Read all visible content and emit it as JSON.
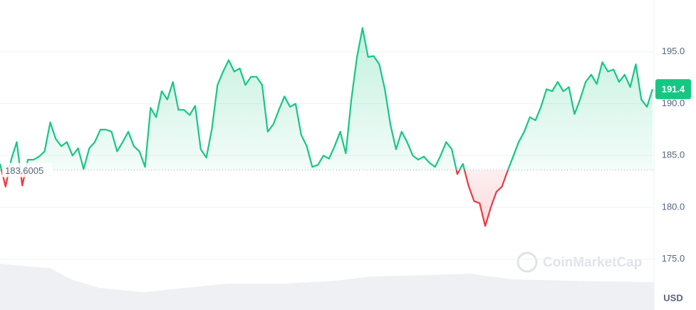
{
  "chart_data": {
    "type": "line",
    "values": [
      184.2,
      182.0,
      184.6,
      186.3,
      182.1,
      184.6,
      184.6,
      184.9,
      185.4,
      188.2,
      186.6,
      185.9,
      186.3,
      185.0,
      185.7,
      183.7,
      185.7,
      186.3,
      187.5,
      187.5,
      187.3,
      185.4,
      186.3,
      187.3,
      185.9,
      185.4,
      183.9,
      189.6,
      188.7,
      191.2,
      190.4,
      192.1,
      189.4,
      189.4,
      188.9,
      189.8,
      185.6,
      184.8,
      187.6,
      191.8,
      193.1,
      194.2,
      193.1,
      193.4,
      191.8,
      192.6,
      192.6,
      191.8,
      187.3,
      188.0,
      189.4,
      190.7,
      189.7,
      190.0,
      187.0,
      185.9,
      183.9,
      184.1,
      185.0,
      184.7,
      185.9,
      187.3,
      185.2,
      190.4,
      194.5,
      197.3,
      194.5,
      194.6,
      193.8,
      191.4,
      188.0,
      185.6,
      187.3,
      186.3,
      185.0,
      184.6,
      184.9,
      184.3,
      183.9,
      185.0,
      186.3,
      185.6,
      183.2,
      184.2,
      182.1,
      180.6,
      180.4,
      178.2,
      180.0,
      181.5,
      182.0,
      183.5,
      184.9,
      186.3,
      187.3,
      188.7,
      188.4,
      189.7,
      191.4,
      191.2,
      192.1,
      191.2,
      191.6,
      189.0,
      190.4,
      192.1,
      192.8,
      191.9,
      194.0,
      193.1,
      193.3,
      192.1,
      192.8,
      191.6,
      193.8,
      190.4,
      189.7,
      191.4
    ],
    "baseline": 183.6005,
    "current_price": 191.4,
    "up_color": "#16c784",
    "down_color": "#ea3943",
    "ylim": [
      170,
      200
    ],
    "yticks": [
      {
        "value": 175,
        "label": "175.0"
      },
      {
        "value": 180,
        "label": "180.0"
      },
      {
        "value": 185,
        "label": "185.0"
      },
      {
        "value": 190,
        "label": "190.0"
      },
      {
        "value": 195,
        "label": "195.0"
      }
    ],
    "grid": true,
    "currency": "USD",
    "watermark": "CoinMarketCap"
  }
}
